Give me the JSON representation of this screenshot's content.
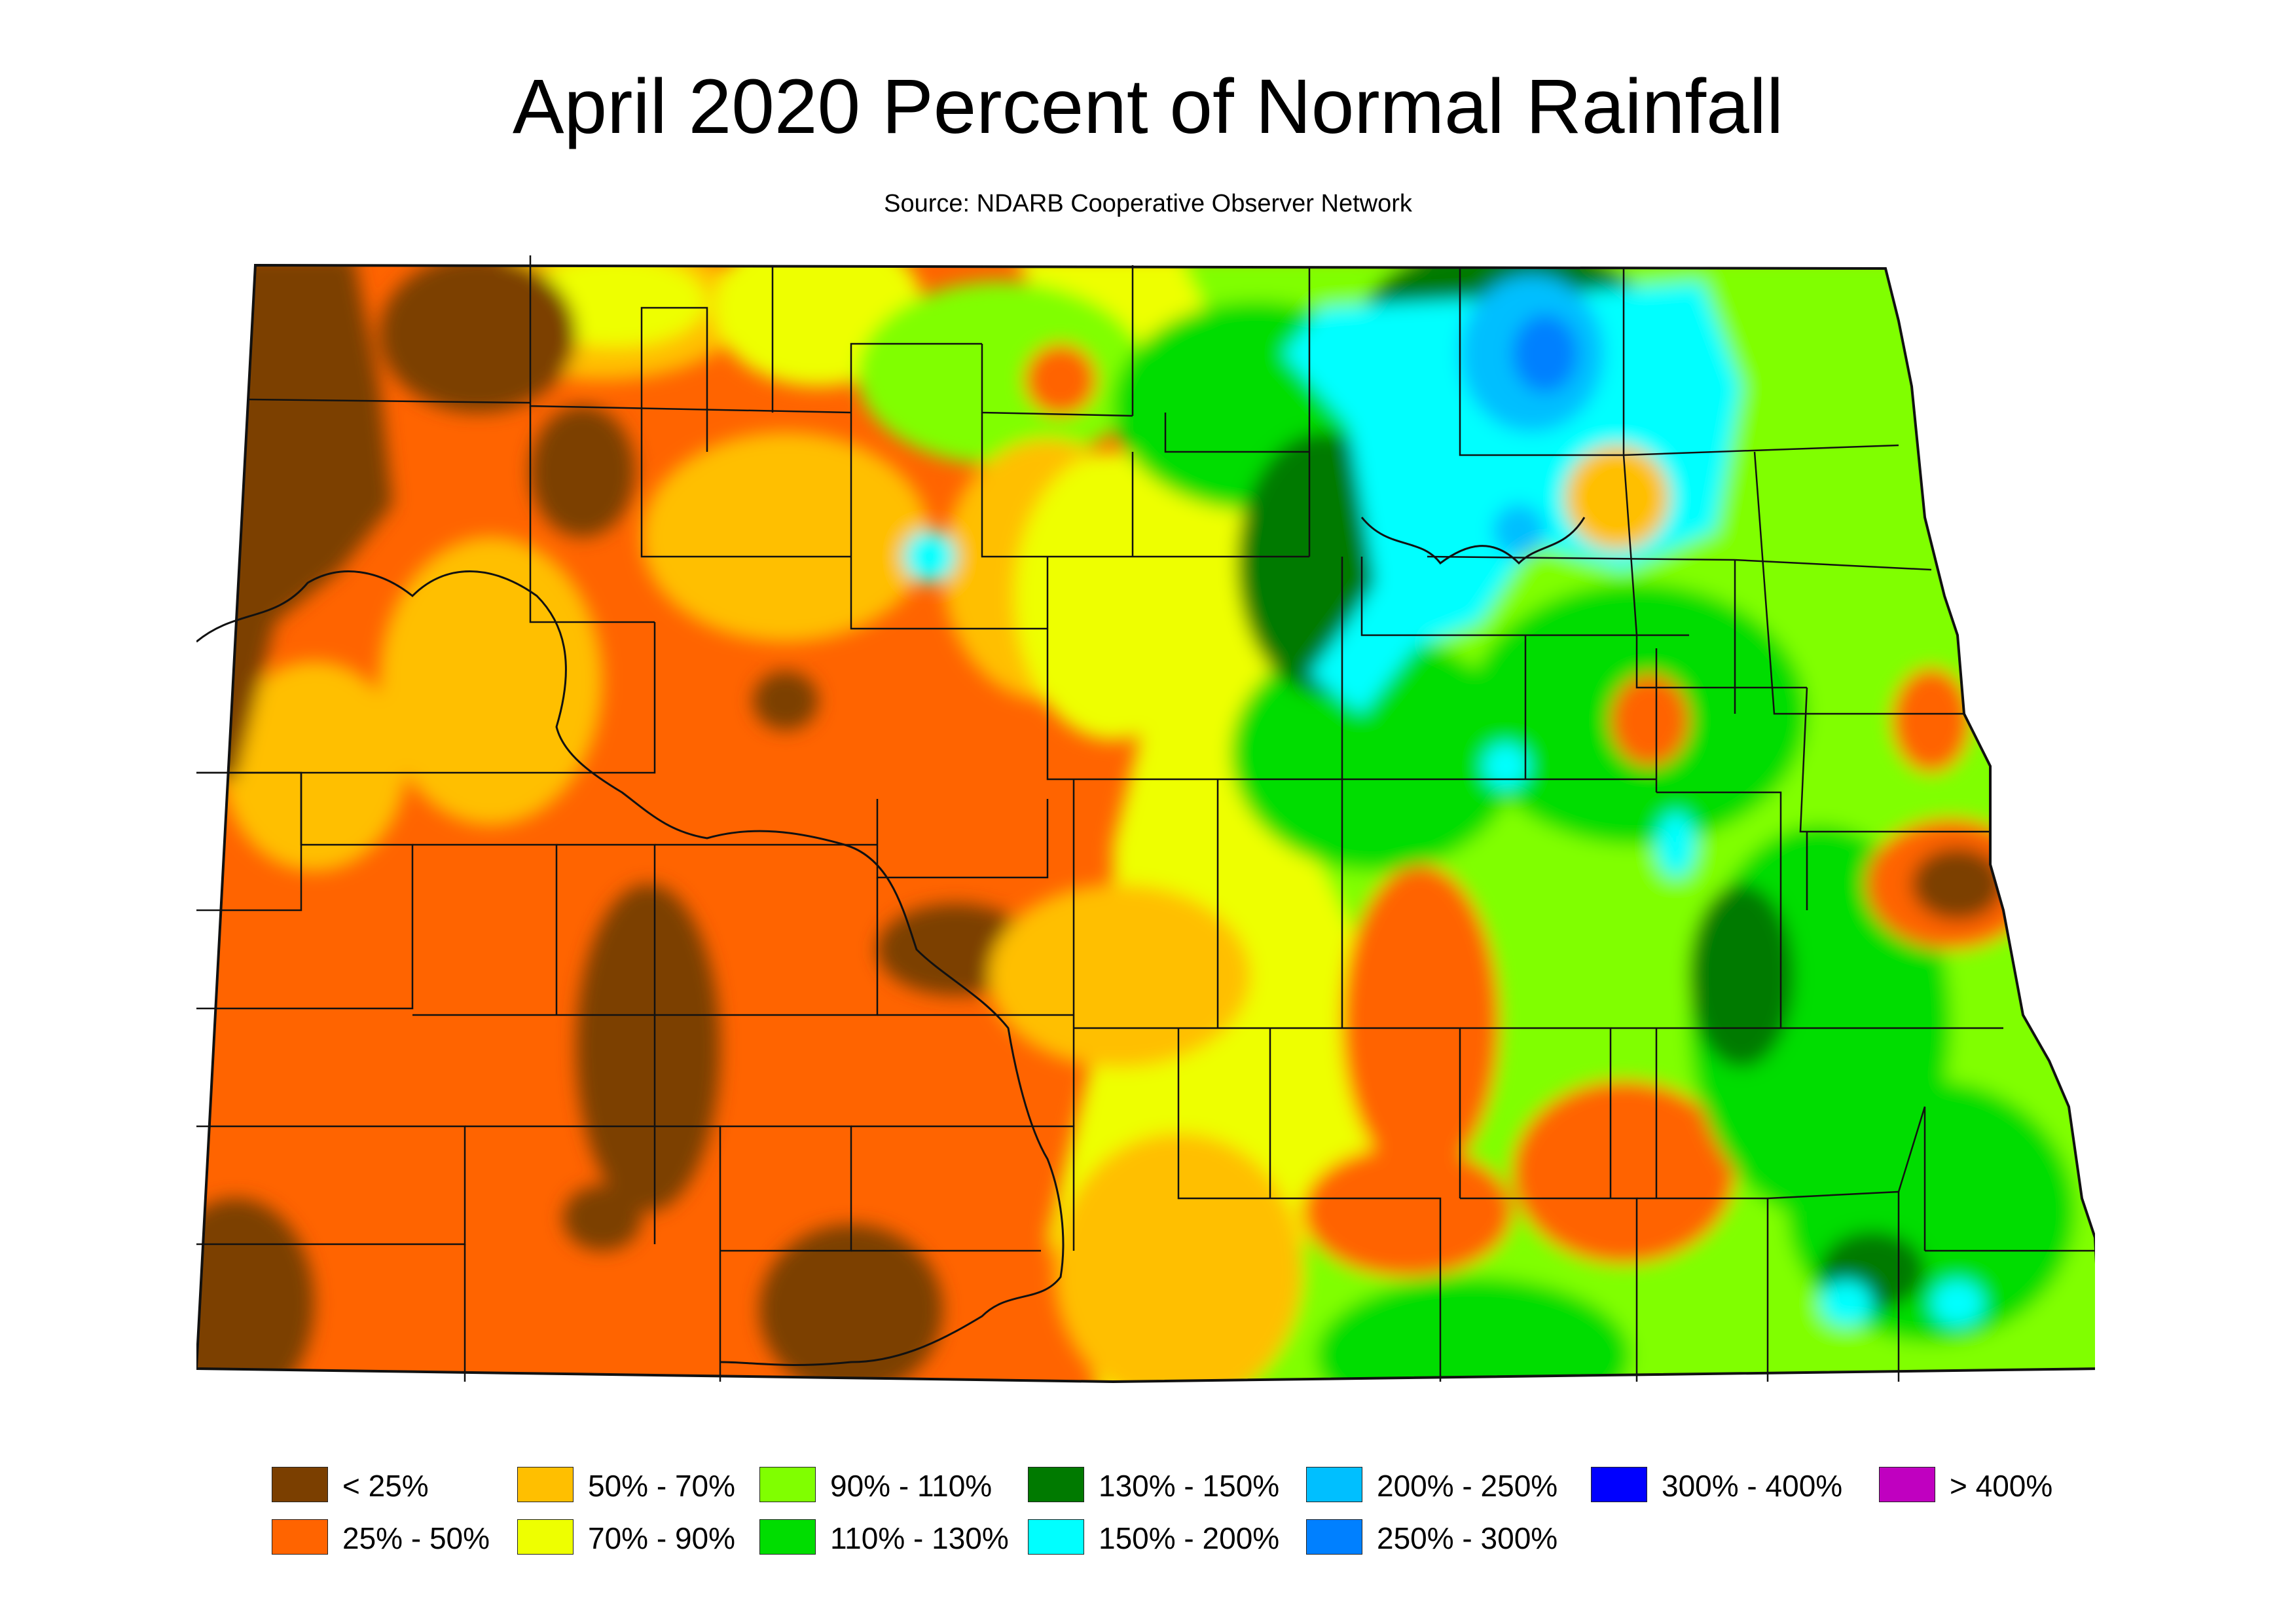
{
  "title": "April 2020 Percent of Normal Rainfall",
  "subtitle": "Source: NDARB Cooperative Observer Network",
  "legend": [
    {
      "label": "< 25%",
      "color": "#7b3f00"
    },
    {
      "label": "25% - 50%",
      "color": "#ff6400"
    },
    {
      "label": "50% - 70%",
      "color": "#ffbf00"
    },
    {
      "label": "70% - 90%",
      "color": "#eeff00"
    },
    {
      "label": "90% - 110%",
      "color": "#80ff00"
    },
    {
      "label": "110% - 130%",
      "color": "#00dd00"
    },
    {
      "label": "130% - 150%",
      "color": "#007a00"
    },
    {
      "label": "150% - 200%",
      "color": "#00ffff"
    },
    {
      "label": "200% - 250%",
      "color": "#00bfff"
    },
    {
      "label": "250% - 300%",
      "color": "#0080ff"
    },
    {
      "label": "300% - 400%",
      "color": "#0000ff"
    },
    {
      "label": "> 400%",
      "color": "#c000c0"
    }
  ]
}
